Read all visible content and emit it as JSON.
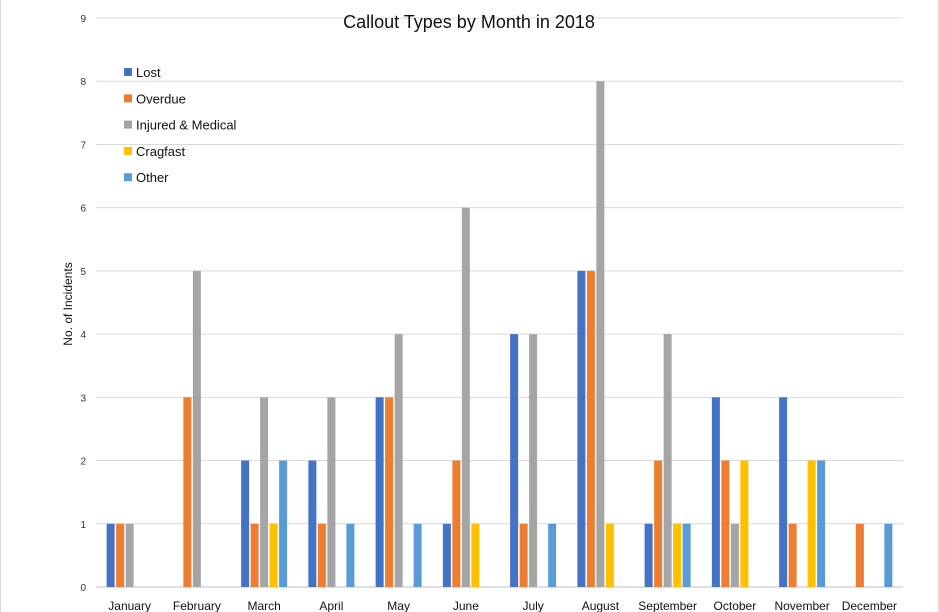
{
  "chart_data": {
    "type": "bar",
    "title": "Callout Types by Month in 2018",
    "xlabel": "",
    "ylabel": "No. of Incidents",
    "ylim": [
      0,
      9
    ],
    "yticks": [
      0,
      1,
      2,
      3,
      4,
      5,
      6,
      7,
      8,
      9
    ],
    "grid": true,
    "legend_position": "top-left",
    "categories": [
      "January",
      "February",
      "March",
      "April",
      "May",
      "June",
      "July",
      "August",
      "September",
      "October",
      "November",
      "December"
    ],
    "series": [
      {
        "name": "Lost",
        "color": "#4472C4",
        "values": [
          1,
          0,
          2,
          2,
          3,
          1,
          4,
          5,
          1,
          3,
          3,
          0
        ]
      },
      {
        "name": "Overdue",
        "color": "#ED7D31",
        "values": [
          1,
          3,
          1,
          1,
          3,
          2,
          1,
          5,
          2,
          2,
          1,
          1
        ]
      },
      {
        "name": "Injured & Medical",
        "color": "#A5A5A5",
        "values": [
          1,
          5,
          3,
          3,
          4,
          6,
          4,
          8,
          4,
          1,
          0,
          0
        ]
      },
      {
        "name": "Cragfast",
        "color": "#FFC000",
        "values": [
          0,
          0,
          1,
          0,
          0,
          1,
          0,
          1,
          1,
          2,
          2,
          0
        ]
      },
      {
        "name": "Other",
        "color": "#5B9BD5",
        "values": [
          0,
          0,
          2,
          1,
          1,
          0,
          1,
          0,
          1,
          0,
          2,
          1
        ]
      }
    ]
  }
}
